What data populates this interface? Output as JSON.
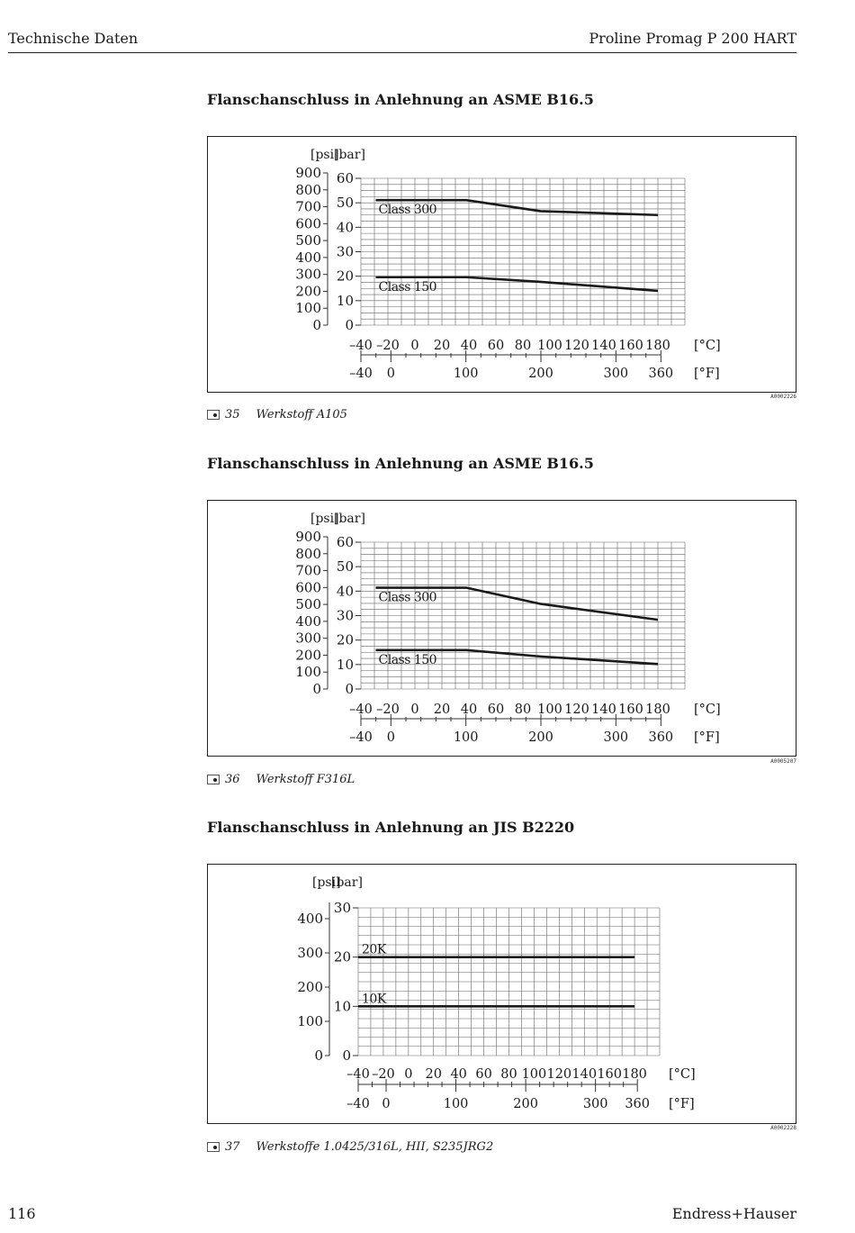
{
  "header": {
    "left": "Technische Daten",
    "right": "Proline Promag P 200 HART"
  },
  "footer": {
    "page_number": "116",
    "brand": "Endress+Hauser"
  },
  "sections": [
    {
      "title": "Flanschanschluss in Anlehnung an ASME B16.5",
      "figure_id": "A0002226",
      "caption_number": "35",
      "caption_text": "Werkstoff A105"
    },
    {
      "title": "Flanschanschluss in Anlehnung an ASME B16.5",
      "figure_id": "A0005207",
      "caption_number": "36",
      "caption_text": "Werkstoff F316L"
    },
    {
      "title": "Flanschanschluss in Anlehnung an JIS B2220",
      "figure_id": "A0002228",
      "caption_number": "37",
      "caption_text": "Werkstoffe 1.0425/316L, HII, S235JRG2"
    }
  ],
  "chart_data": [
    {
      "type": "line",
      "title": "",
      "psi_unit": "[psi]",
      "bar_unit": "[bar]",
      "c_unit": "[°C]",
      "f_unit": "[°F]",
      "ylim": [
        0,
        60
      ],
      "xlim": [
        -40,
        200
      ],
      "grid": true,
      "psi_ticks": [
        "0",
        "100",
        "200",
        "300",
        "400",
        "500",
        "600",
        "700",
        "800",
        "900"
      ],
      "bar_ticks": [
        "0",
        "10",
        "20",
        "30",
        "40",
        "50",
        "60"
      ],
      "c_ticks": [
        "–40",
        "–20",
        "0",
        "20",
        "40",
        "60",
        "80",
        "100",
        "120",
        "140",
        "160",
        "180"
      ],
      "f_ticks": [
        "–40",
        "0",
        "100",
        "200",
        "300",
        "360"
      ],
      "series": [
        {
          "name": "Class 300",
          "x": [
            -29,
            38,
            93,
            180
          ],
          "y": [
            51.1,
            51.1,
            46.6,
            45.0
          ]
        },
        {
          "name": "Class 150",
          "x": [
            -29,
            38,
            93,
            180
          ],
          "y": [
            19.6,
            19.6,
            17.7,
            14.0
          ]
        }
      ]
    },
    {
      "type": "line",
      "title": "",
      "psi_unit": "[psi]",
      "bar_unit": "[bar]",
      "c_unit": "[°C]",
      "f_unit": "[°F]",
      "ylim": [
        0,
        60
      ],
      "xlim": [
        -40,
        200
      ],
      "grid": true,
      "psi_ticks": [
        "0",
        "100",
        "200",
        "300",
        "400",
        "500",
        "600",
        "700",
        "800",
        "900"
      ],
      "bar_ticks": [
        "0",
        "10",
        "20",
        "30",
        "40",
        "50",
        "60"
      ],
      "c_ticks": [
        "–40",
        "–20",
        "0",
        "20",
        "40",
        "60",
        "80",
        "100",
        "120",
        "140",
        "160",
        "180"
      ],
      "f_ticks": [
        "–40",
        "0",
        "100",
        "200",
        "300",
        "360"
      ],
      "series": [
        {
          "name": "Class 300",
          "x": [
            -29,
            38,
            93,
            180
          ],
          "y": [
            41.4,
            41.4,
            34.8,
            28.3
          ]
        },
        {
          "name": "Class 150",
          "x": [
            -29,
            38,
            93,
            180
          ],
          "y": [
            15.9,
            15.9,
            13.3,
            10.2
          ]
        }
      ]
    },
    {
      "type": "line",
      "title": "",
      "psi_unit": "[psi]",
      "bar_unit": "[bar]",
      "c_unit": "[°C]",
      "f_unit": "[°F]",
      "ylim": [
        0,
        30
      ],
      "xlim": [
        -40,
        200
      ],
      "grid": true,
      "psi_ticks": [
        "0",
        "100",
        "200",
        "300",
        "400"
      ],
      "bar_ticks": [
        "0",
        "10",
        "20",
        "30"
      ],
      "c_ticks": [
        "–40",
        "–20",
        "0",
        "20",
        "40",
        "60",
        "80",
        "100",
        "120",
        "140",
        "160",
        "180"
      ],
      "f_ticks": [
        "–40",
        "0",
        "100",
        "200",
        "300",
        "360"
      ],
      "series": [
        {
          "name": "20K",
          "x": [
            -40,
            180
          ],
          "y": [
            20,
            20
          ]
        },
        {
          "name": "10K",
          "x": [
            -40,
            180
          ],
          "y": [
            10,
            10
          ]
        }
      ]
    }
  ]
}
